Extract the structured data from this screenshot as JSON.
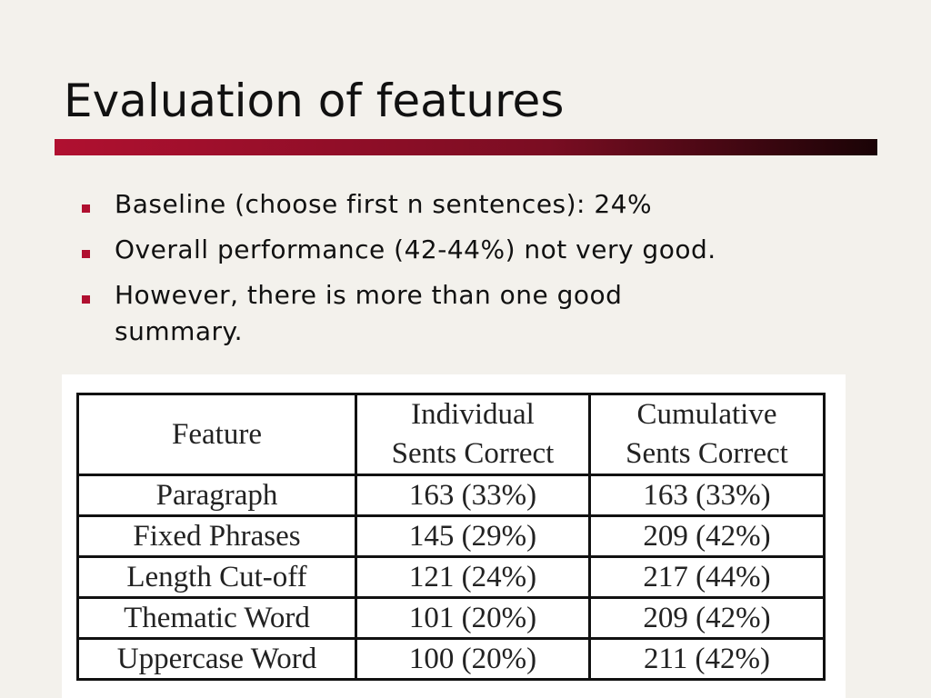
{
  "slide": {
    "title": "Evaluation of features",
    "bullets": [
      "Baseline (choose first n sentences): 24%",
      "Overall performance (42-44%) not very good.",
      "However, there is more than one good summary."
    ],
    "table": {
      "header": [
        [
          "Feature"
        ],
        [
          "Individual",
          "Sents Correct"
        ],
        [
          "Cumulative",
          "Sents Correct"
        ]
      ],
      "rows": [
        [
          "Paragraph",
          "163 (33%)",
          "163 (33%)"
        ],
        [
          "Fixed Phrases",
          "145 (29%)",
          "209 (42%)"
        ],
        [
          "Length Cut-off",
          "121 (24%)",
          "217 (44%)"
        ],
        [
          "Thematic Word",
          "101 (20%)",
          "209 (42%)"
        ],
        [
          "Uppercase Word",
          "100 (20%)",
          "211 (42%)"
        ]
      ]
    }
  }
}
